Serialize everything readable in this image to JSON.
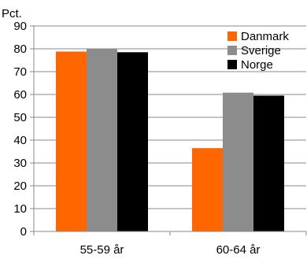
{
  "chart_data": {
    "type": "bar",
    "ylabel": "Pct.",
    "categories": [
      "55-59 år",
      "60-64 år"
    ],
    "series": [
      {
        "name": "Danmark",
        "color": "#ff6600",
        "values": [
          78.8,
          36.5
        ]
      },
      {
        "name": "Sverige",
        "color": "#8c8c8c",
        "values": [
          80.0,
          60.8
        ]
      },
      {
        "name": "Norge",
        "color": "#000000",
        "values": [
          78.5,
          59.5
        ]
      }
    ],
    "ylim": [
      0,
      90
    ],
    "yticks": [
      0,
      10,
      20,
      30,
      40,
      50,
      60,
      70,
      80,
      90
    ],
    "grid": true,
    "legend_position": "top-right"
  }
}
